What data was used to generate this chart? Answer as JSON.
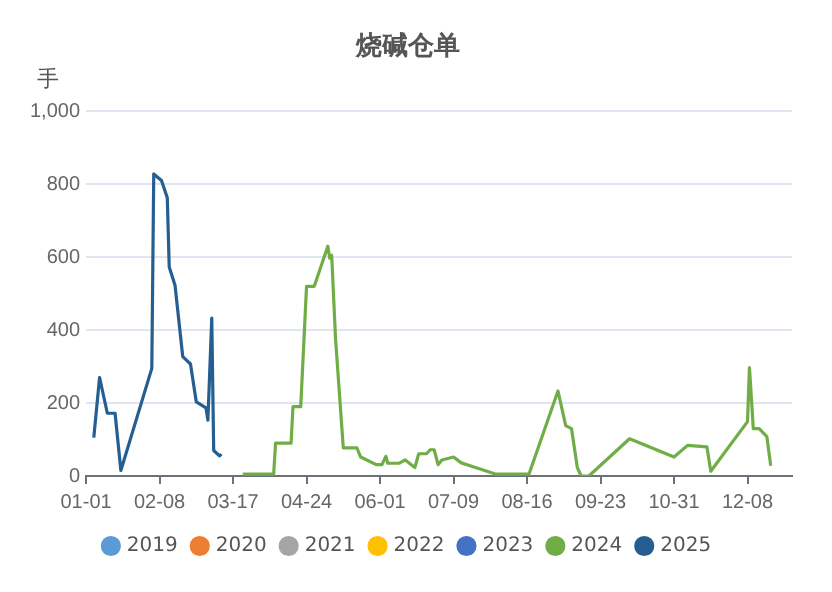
{
  "chart_data": {
    "type": "line",
    "title": "烧碱仓单",
    "ylabel": "手",
    "legend": "bottom",
    "grid": "y",
    "marker": "none",
    "line_style": "solid",
    "xlim": [
      "--01-01",
      "--12-31"
    ],
    "xticks": [
      {
        "value": "--01-01",
        "label": "01-01"
      },
      {
        "value": "--02-08",
        "label": "02-08"
      },
      {
        "value": "--03-17",
        "label": "03-17"
      },
      {
        "value": "--04-24",
        "label": "04-24"
      },
      {
        "value": "--06-01",
        "label": "06-01"
      },
      {
        "value": "--07-09",
        "label": "07-09"
      },
      {
        "value": "--08-16",
        "label": "08-16"
      },
      {
        "value": "--09-23",
        "label": "09-23"
      },
      {
        "value": "--10-31",
        "label": "10-31"
      },
      {
        "value": "--12-08",
        "label": "12-08"
      }
    ],
    "ylim": [
      0,
      1000
    ],
    "yticks": [
      0,
      200,
      400,
      600,
      800,
      {
        "value": 1000,
        "label": "1,000"
      }
    ],
    "series": [
      {
        "name": "2019",
        "color": "#5b9bd5"
      },
      {
        "name": "2020",
        "color": "#ed7d31"
      },
      {
        "name": "2021",
        "color": "#a5a5a5"
      },
      {
        "name": "2022",
        "color": "#ffc000"
      },
      {
        "name": "2023",
        "color": "#4472c4"
      },
      {
        "name": "2024",
        "color": "#70ad47",
        "x": [
          "--03-22",
          "--04-07",
          "--04-08",
          "--04-16",
          "--04-17",
          "--04-21",
          "--04-24",
          "--04-28",
          "--05-05",
          "--05-06",
          "--05-07",
          "--05-09",
          "--05-13",
          "--05-20",
          "--05-22",
          "--05-30",
          "--06-02",
          "--06-04",
          "--06-05",
          "--06-11",
          "--06-14",
          "--06-19",
          "--06-21",
          "--06-25",
          "--06-27",
          "--06-29",
          "--07-01",
          "--07-03",
          "--07-09",
          "--07-13",
          "--07-16",
          "--07-31",
          "--08-17",
          "--09-01",
          "--09-05",
          "--09-08",
          "--09-11",
          "--09-13",
          "--09-17",
          "--10-08",
          "--10-31",
          "--11-01",
          "--11-07",
          "--11-17",
          "--11-19",
          "--12-08",
          "--12-09",
          "--12-11",
          "--12-14",
          "--12-18",
          "--12-20"
        ],
        "values": [
          5,
          5,
          90,
          90,
          190,
          190,
          520,
          520,
          630,
          597,
          605,
          376,
          77,
          77,
          52,
          31,
          31,
          54,
          35,
          35,
          44,
          23,
          61,
          61,
          72,
          72,
          31,
          44,
          52,
          36,
          31,
          5,
          5,
          233,
          138,
          130,
          23,
          0,
          0,
          102,
          52,
          52,
          84,
          80,
          13,
          149,
          297,
          130,
          130,
          108,
          28
        ]
      },
      {
        "name": "2025",
        "color": "#255e91",
        "x": [
          "--01-05",
          "--01-08",
          "--01-12",
          "--01-16",
          "--01-19",
          "--02-04",
          "--02-05",
          "--02-09",
          "--02-12",
          "--02-13",
          "--02-16",
          "--02-20",
          "--02-24",
          "--02-27",
          "--03-03",
          "--03-04",
          "--03-06",
          "--03-07",
          "--03-10",
          "--03-11"
        ],
        "values": [
          105,
          270,
          172,
          172,
          15,
          295,
          828,
          810,
          763,
          573,
          523,
          327,
          307,
          203,
          187,
          153,
          433,
          70,
          55,
          60
        ]
      }
    ]
  }
}
